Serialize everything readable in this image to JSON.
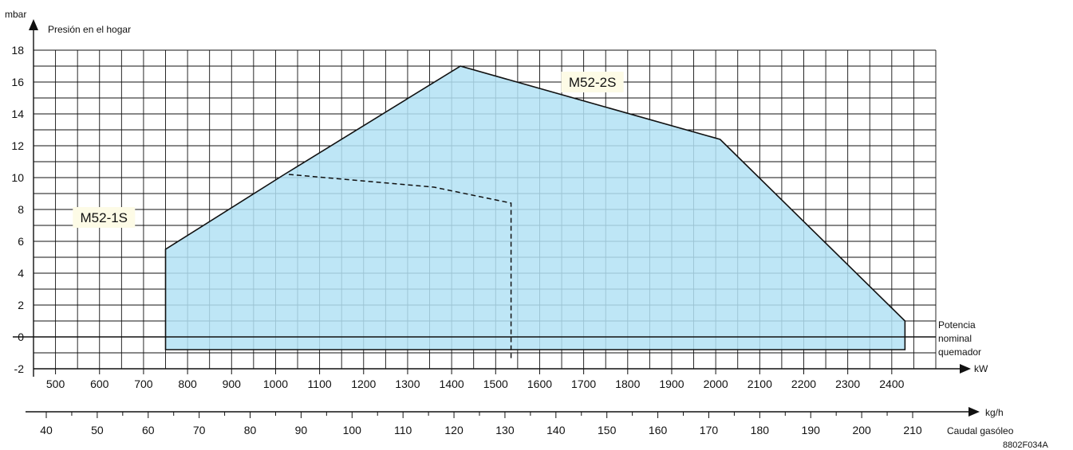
{
  "chart_data": {
    "type": "area",
    "y_unit": "mbar",
    "y_title": "Presión en el hogar",
    "x_unit": "kW",
    "x2_unit": "kg/h",
    "x2_title": "Caudal gasóleo",
    "figure_code": "8802F034A",
    "right_note": [
      "Potencia",
      "nominal",
      "quemador"
    ],
    "ylim": [
      -2,
      18
    ],
    "xlim": [
      450,
      2500
    ],
    "y_ticks": [
      -2,
      0,
      2,
      4,
      6,
      8,
      10,
      12,
      14,
      16,
      18
    ],
    "x_ticks": [
      500,
      600,
      700,
      800,
      900,
      1000,
      1100,
      1200,
      1300,
      1400,
      1500,
      1600,
      1700,
      1800,
      1900,
      2000,
      2100,
      2200,
      2300,
      2400
    ],
    "x2_ticks": [
      40,
      50,
      60,
      70,
      80,
      90,
      100,
      110,
      120,
      130,
      140,
      150,
      160,
      170,
      180,
      190,
      200,
      210
    ],
    "grid": true,
    "series": [
      {
        "name": "M52-2S",
        "style": "filled-area",
        "fill": "#b3e2f5",
        "stroke": "#111111",
        "points": [
          {
            "x": 750,
            "y": -0.8
          },
          {
            "x": 750,
            "y": 5.5
          },
          {
            "x": 1020,
            "y": 10.2
          },
          {
            "x": 1420,
            "y": 17.0
          },
          {
            "x": 2010,
            "y": 12.4
          },
          {
            "x": 2430,
            "y": 1.0
          },
          {
            "x": 2430,
            "y": -0.8
          }
        ]
      },
      {
        "name": "M52-1S",
        "style": "dashed",
        "stroke": "#111111",
        "points": [
          {
            "x": 1030,
            "y": 10.2
          },
          {
            "x": 1360,
            "y": 9.4
          },
          {
            "x": 1535,
            "y": 8.4
          },
          {
            "x": 1535,
            "y": -1.5
          }
        ]
      }
    ],
    "legend_labels": [
      {
        "text": "M52-2S",
        "x": 1720,
        "y": 16.0
      },
      {
        "text": "M52-1S",
        "x": 610,
        "y": 7.5
      }
    ]
  }
}
